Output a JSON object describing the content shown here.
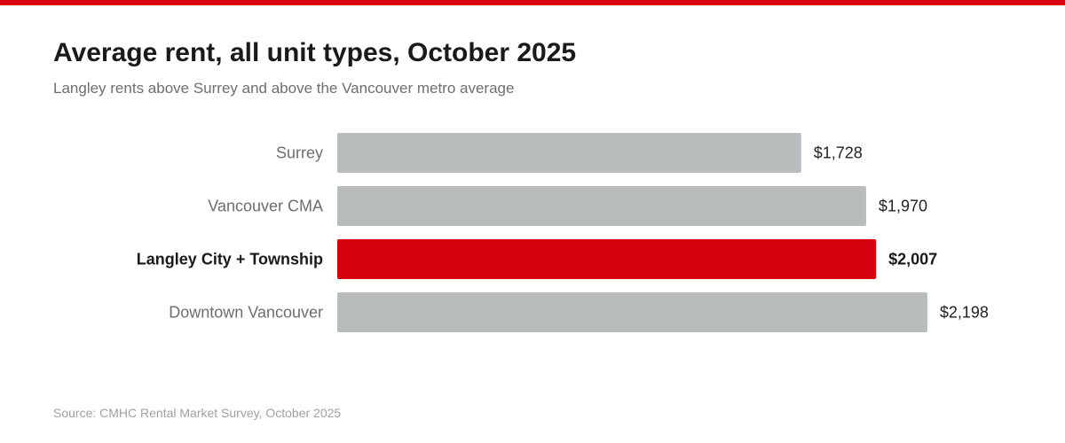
{
  "colors": {
    "accent": "#d7000f",
    "bar_default": "#b9bcbc",
    "text_dark": "#1a1a1a",
    "text_muted": "#6e6e6e",
    "value_text": "#222222"
  },
  "chart_data": {
    "type": "bar",
    "orientation": "horizontal",
    "title": "Average rent, all unit types, October 2025",
    "subtitle": "Langley rents above Surrey and above the Vancouver metro average",
    "categories": [
      "Surrey",
      "Vancouver CMA",
      "Langley City + Township",
      "Downtown Vancouver"
    ],
    "values": [
      1728,
      1970,
      2007,
      2198
    ],
    "value_labels": [
      "$1,728",
      "$1,970",
      "$2,007",
      "$2,198"
    ],
    "highlight": "Langley City + Township",
    "xlim": [
      0,
      2400
    ],
    "grid": false,
    "source": "Source: CMHC Rental Market Survey, October 2025"
  }
}
